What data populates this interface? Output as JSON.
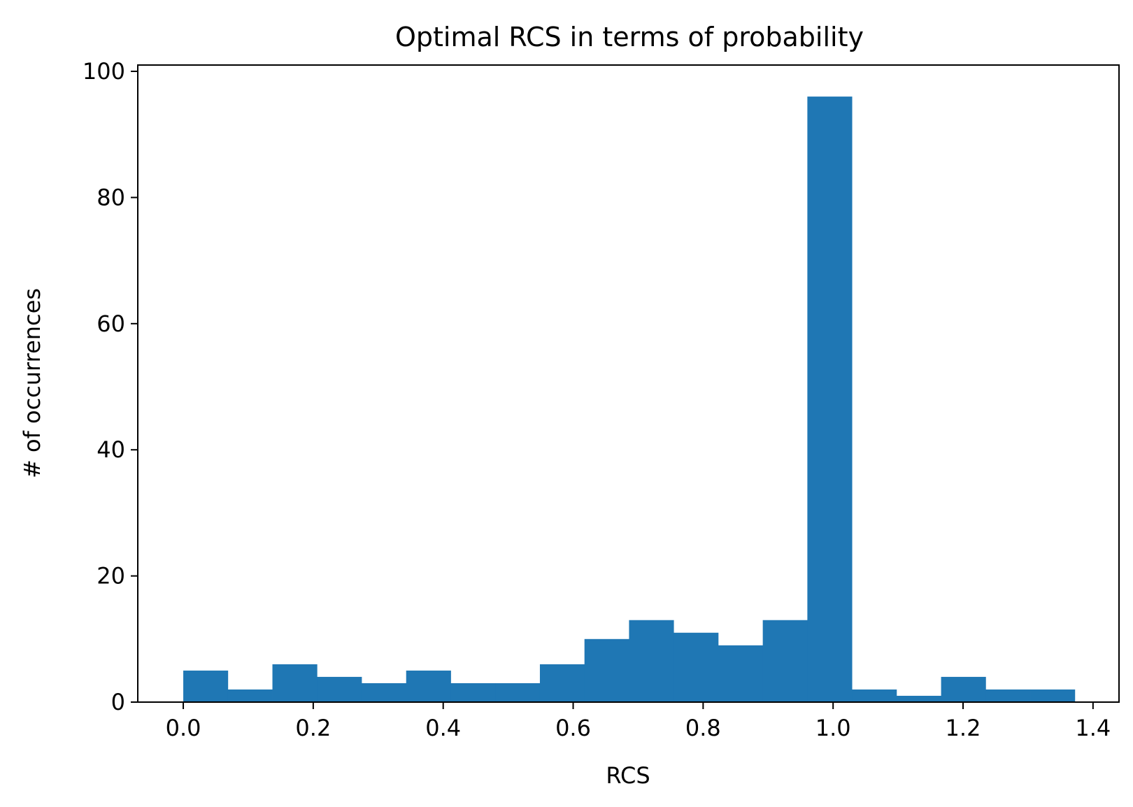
{
  "chart_data": {
    "type": "bar",
    "title": "Optimal RCS in terms of probability",
    "xlabel": "RCS",
    "ylabel": "# of occurrences",
    "xlim": [
      -0.07,
      1.44
    ],
    "ylim": [
      0,
      101
    ],
    "grid": false,
    "bar_color": "#1f77b4",
    "xticks": [
      0.0,
      0.2,
      0.4,
      0.6,
      0.8,
      1.0,
      1.2,
      1.4
    ],
    "xtick_labels": [
      "0.0",
      "0.2",
      "0.4",
      "0.6",
      "0.8",
      "1.0",
      "1.2",
      "1.4"
    ],
    "yticks": [
      0,
      20,
      40,
      60,
      80,
      100
    ],
    "ytick_labels": [
      "0",
      "20",
      "40",
      "60",
      "80",
      "100"
    ],
    "bin_edges": [
      0.0,
      0.0686,
      0.1372,
      0.2058,
      0.2744,
      0.343,
      0.4116,
      0.4802,
      0.5488,
      0.6174,
      0.686,
      0.7546,
      0.8232,
      0.8918,
      0.9604,
      1.029,
      1.0976,
      1.1662,
      1.2348,
      1.3034,
      1.372
    ],
    "values": [
      5,
      2,
      6,
      4,
      3,
      5,
      3,
      3,
      6,
      10,
      13,
      11,
      9,
      13,
      96,
      2,
      1,
      4,
      2,
      2
    ]
  }
}
